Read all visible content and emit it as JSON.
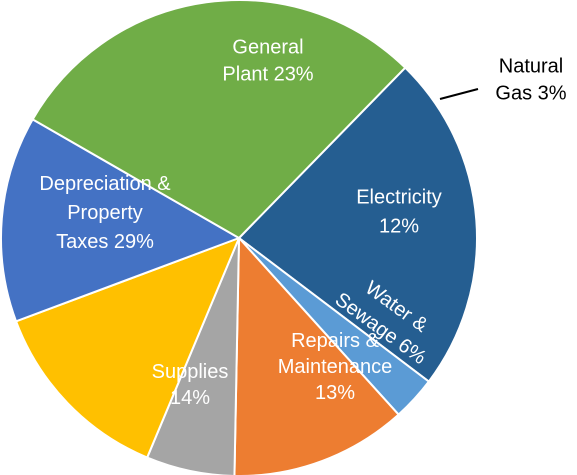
{
  "chart_data": {
    "type": "pie",
    "title": "",
    "start_angle_deg": 44.3,
    "direction": "clockwise",
    "slices": [
      {
        "label": "General Plant",
        "value": 23,
        "label_lines": [
          "General",
          "Plant 23%"
        ],
        "color": "#255E91"
      },
      {
        "label": "Natural Gas",
        "value": 3,
        "label_lines": [
          "Natural",
          "Gas 3%"
        ],
        "color": "#5B9BD5",
        "label_outside": true
      },
      {
        "label": "Electricity",
        "value": 12,
        "label_lines": [
          "Electricity",
          "12%"
        ],
        "color": "#ED7D31"
      },
      {
        "label": "Water & Sewage",
        "value": 6,
        "label_lines": [
          "Water &",
          "Sewage 6%"
        ],
        "color": "#A5A5A5",
        "label_rotated": true
      },
      {
        "label": "Repairs & Maintenance",
        "value": 13,
        "label_lines": [
          "Repairs &",
          "Maintenance",
          "13%"
        ],
        "color": "#FFC000"
      },
      {
        "label": "Supplies",
        "value": 14,
        "label_lines": [
          "Supplies",
          "14%"
        ],
        "color": "#4472C4"
      },
      {
        "label": "Depreciation & Property Taxes",
        "value": 29,
        "label_lines": [
          "Depreciation &",
          "Property",
          "Taxes 29%"
        ],
        "color": "#70AD47"
      }
    ]
  }
}
